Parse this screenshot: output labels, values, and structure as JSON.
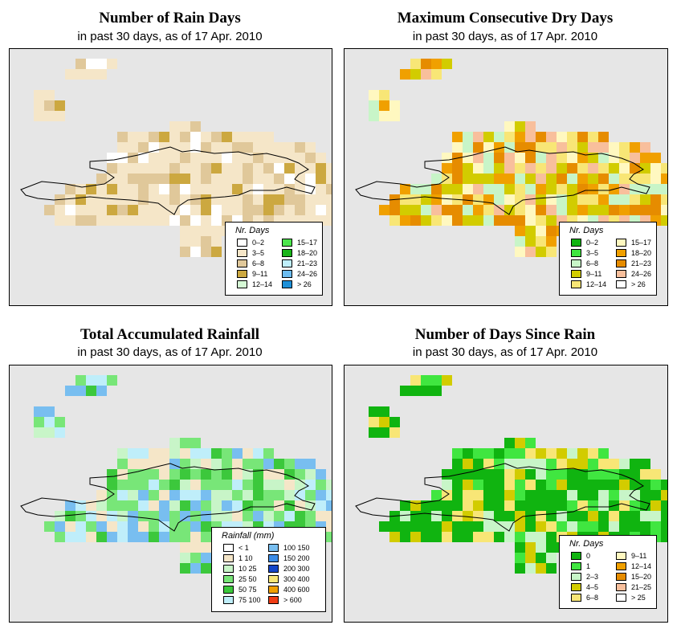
{
  "panels": [
    {
      "id": "rain-days",
      "title": "Number of Rain Days",
      "subtitle": "in past 30 days, as of  17 Apr. 2010",
      "legend": {
        "title": "Nr. Days",
        "items": [
          {
            "label": "0–2",
            "color": "#ffffff"
          },
          {
            "label": "3–5",
            "color": "#f5e6c8"
          },
          {
            "label": "6–8",
            "color": "#e0c89a"
          },
          {
            "label": "9–11",
            "color": "#cca840"
          },
          {
            "label": "12–14",
            "color": "#d6fad6"
          },
          {
            "label": "15–17",
            "color": "#4de64d"
          },
          {
            "label": "18–20",
            "color": "#1ab41a"
          },
          {
            "label": "21–23",
            "color": "#bfeefa"
          },
          {
            "label": "24–26",
            "color": "#6cbcf0"
          },
          {
            "label": "> 26",
            "color": "#1e90d8"
          }
        ]
      }
    },
    {
      "id": "dry-days",
      "title": "Maximum Consecutive Dry Days",
      "subtitle": "in past 30 days, as of  17 Apr. 2010",
      "legend": {
        "title": "Nr. Days",
        "items": [
          {
            "label": "0–2",
            "color": "#10b410"
          },
          {
            "label": "3–5",
            "color": "#40e640"
          },
          {
            "label": "6–8",
            "color": "#c8f5c8"
          },
          {
            "label": "9–11",
            "color": "#d2cc00"
          },
          {
            "label": "12–14",
            "color": "#f8e676"
          },
          {
            "label": "15–17",
            "color": "#fff8c0"
          },
          {
            "label": "18–20",
            "color": "#f0a000"
          },
          {
            "label": "21–23",
            "color": "#e68c00"
          },
          {
            "label": "24–26",
            "color": "#f8bf9c"
          },
          {
            "label": "> 26",
            "color": "#ffffff"
          }
        ]
      }
    },
    {
      "id": "total-rainfall",
      "title": "Total Accumulated Rainfall",
      "subtitle": "in past 30 days, as of  17 Apr. 2010",
      "legend": {
        "title": "Rainfall (mm)",
        "items": [
          {
            "label": "< 1",
            "color": "#ffffff"
          },
          {
            "label": "1    10",
            "color": "#f5e6c8"
          },
          {
            "label": "10    25",
            "color": "#c8f5c8"
          },
          {
            "label": "25    50",
            "color": "#78e678"
          },
          {
            "label": "50    75",
            "color": "#3cc83c"
          },
          {
            "label": "75   100",
            "color": "#bfeefa"
          },
          {
            "label": "100   150",
            "color": "#78bef0"
          },
          {
            "label": "150   200",
            "color": "#3c8ce6"
          },
          {
            "label": "200   300",
            "color": "#1446c8"
          },
          {
            "label": "300   400",
            "color": "#f8e676"
          },
          {
            "label": "400   600",
            "color": "#f0a000"
          },
          {
            "label": "> 600",
            "color": "#f03c14"
          }
        ]
      }
    },
    {
      "id": "days-since-rain",
      "title": "Number of Days Since Rain",
      "subtitle": "in past 30 days, as of  17 Apr. 2010",
      "legend": {
        "title": "Nr. Days",
        "items": [
          {
            "label": "0",
            "color": "#10b410"
          },
          {
            "label": "1",
            "color": "#40e640"
          },
          {
            "label": "2–3",
            "color": "#c8f5c8"
          },
          {
            "label": "4–5",
            "color": "#d2cc00"
          },
          {
            "label": "6–8",
            "color": "#f8e676"
          },
          {
            "label": "9–11",
            "color": "#fff8c0"
          },
          {
            "label": "12–14",
            "color": "#f0a000"
          },
          {
            "label": "15–20",
            "color": "#e68c00"
          },
          {
            "label": "21–25",
            "color": "#f8bf9c"
          },
          {
            "label": "> 25",
            "color": "#ffffff"
          }
        ]
      }
    }
  ],
  "colors": {
    "map_background": "#e6e6e6",
    "coastline": "#000000"
  }
}
